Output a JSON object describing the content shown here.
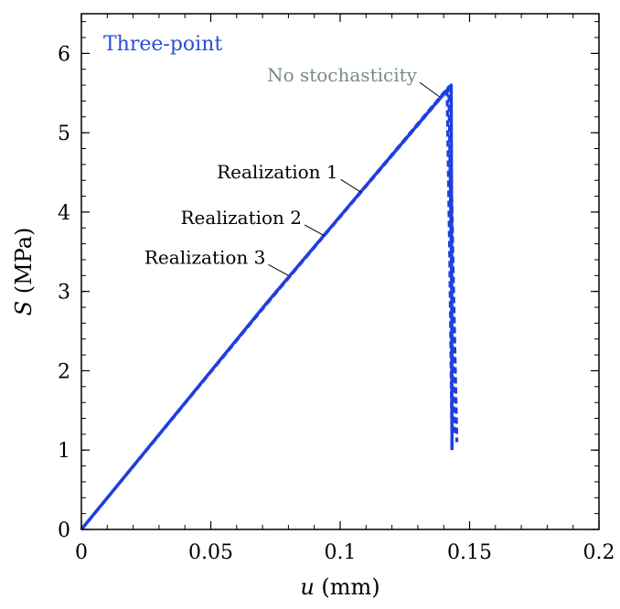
{
  "chart_data": {
    "type": "line",
    "title": "Three-point",
    "xlabel": "u (mm)",
    "xlabel_var": "u",
    "xlabel_unit": " (mm)",
    "ylabel": "S (MPa)",
    "ylabel_var": "S",
    "ylabel_unit": " (MPa)",
    "xlim": [
      0,
      0.2
    ],
    "ylim": [
      0,
      6.5
    ],
    "xticks": [
      0,
      0.05,
      0.1,
      0.15,
      0.2
    ],
    "xtick_labels": [
      "0",
      "0.05",
      "0.1",
      "0.15",
      "0.2"
    ],
    "yticks": [
      0,
      1,
      2,
      3,
      4,
      5,
      6
    ],
    "ytick_labels": [
      "0",
      "1",
      "2",
      "3",
      "4",
      "5",
      "6"
    ],
    "colors": {
      "series": "#1f3fe0",
      "title": "#2a4fd8",
      "gray_annotation": "#7a8a8a"
    },
    "series": [
      {
        "name": "No stochasticity",
        "style": "solid",
        "x": [
          0,
          0.0715,
          0.1429,
          0.1431,
          0.1432
        ],
        "y": [
          0,
          2.85,
          5.6,
          3.0,
          1.0
        ]
      },
      {
        "name": "Realization 1",
        "style": "dashed",
        "x": [
          0,
          0.0705,
          0.1413,
          0.1423,
          0.1432
        ],
        "y": [
          0,
          2.8,
          5.55,
          3.5,
          1.1
        ]
      },
      {
        "name": "Realization 2",
        "style": "dashed",
        "x": [
          0,
          0.071,
          0.142,
          0.143,
          0.144
        ],
        "y": [
          0,
          2.82,
          5.58,
          3.3,
          1.2
        ]
      },
      {
        "name": "Realization 3",
        "style": "dashed",
        "x": [
          0,
          0.0712,
          0.1423,
          0.1437,
          0.1451
        ],
        "y": [
          0,
          2.83,
          5.57,
          3.2,
          1.1
        ]
      }
    ],
    "annotations": [
      {
        "text": "No stochasticity",
        "style": "gray",
        "point": [
          0.1385,
          5.45
        ]
      },
      {
        "text": "Realization 1",
        "style": "black",
        "point": [
          0.108,
          4.25
        ]
      },
      {
        "text": "Realization 2",
        "style": "black",
        "point": [
          0.094,
          3.7
        ]
      },
      {
        "text": "Realization 3",
        "style": "black",
        "point": [
          0.08,
          3.2
        ]
      }
    ]
  }
}
